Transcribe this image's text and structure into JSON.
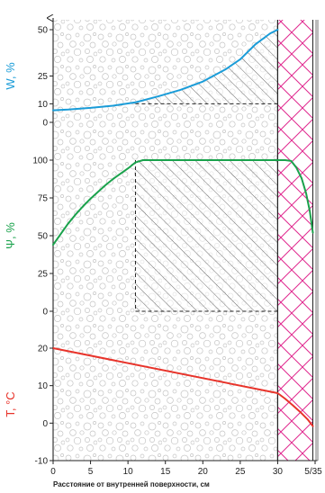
{
  "chart_data": {
    "type": "line",
    "xlabel": "Расстояние от внутренней поверхности, см",
    "x_ticks": [
      {
        "value": 0,
        "label": "0"
      },
      {
        "value": 5,
        "label": "5"
      },
      {
        "value": 10,
        "label": "10"
      },
      {
        "value": 15,
        "label": "15"
      },
      {
        "value": 20,
        "label": "20"
      },
      {
        "value": 25,
        "label": "25"
      },
      {
        "value": 30,
        "label": "30"
      },
      {
        "value": 35,
        "label": "5/35"
      }
    ],
    "xlim": [
      0,
      35.3
    ],
    "wall_boundary_x": 30,
    "insulation_range": [
      30,
      34.7
    ],
    "panels": [
      {
        "id": "moisture",
        "ylabel": "W, %",
        "color": "#1a9cd8",
        "ylim": [
          0,
          50
        ],
        "y_ticks": [
          0,
          10,
          25,
          50
        ],
        "series": {
          "x": [
            0,
            2,
            5,
            8,
            11,
            14,
            17,
            20,
            23,
            25,
            27,
            29,
            30
          ],
          "y": [
            6.5,
            6.9,
            7.8,
            9,
            10.8,
            14,
            17.5,
            22,
            28.5,
            34,
            42,
            48,
            50
          ]
        },
        "region": {
          "x_from": 11,
          "x_to": 30,
          "y_from": 10
        }
      },
      {
        "id": "humidity",
        "ylabel": "Ψ, %",
        "color": "#1aa24c",
        "ylim": [
          0,
          100
        ],
        "y_ticks": [
          0,
          25,
          50,
          75,
          100
        ],
        "series": {
          "x": [
            0,
            1,
            2,
            3,
            4,
            5,
            6,
            7,
            8,
            9,
            10,
            11,
            12,
            16,
            20,
            24,
            28,
            30,
            31,
            31.8,
            32.5,
            33.2,
            33.8,
            34.3,
            34.7
          ],
          "y": [
            44,
            51,
            58,
            64,
            69.5,
            74.5,
            79,
            83.5,
            87.5,
            91,
            94.5,
            98.5,
            100,
            100,
            100,
            100,
            100,
            100,
            100,
            99.5,
            95,
            88,
            78,
            66,
            52
          ]
        },
        "region": {
          "x_from": 11,
          "x_to": 30,
          "y_from": 0,
          "y_to": 100
        }
      },
      {
        "id": "temperature",
        "ylabel": "T, °C",
        "color": "#e8332a",
        "ylim": [
          -10,
          20
        ],
        "y_ticks": [
          -10,
          0,
          10,
          20
        ],
        "series": {
          "x": [
            0,
            30,
            31,
            32,
            33,
            34,
            34.7
          ],
          "y": [
            20,
            8,
            6.5,
            4.8,
            3,
            1,
            -0.8
          ]
        }
      }
    ]
  }
}
